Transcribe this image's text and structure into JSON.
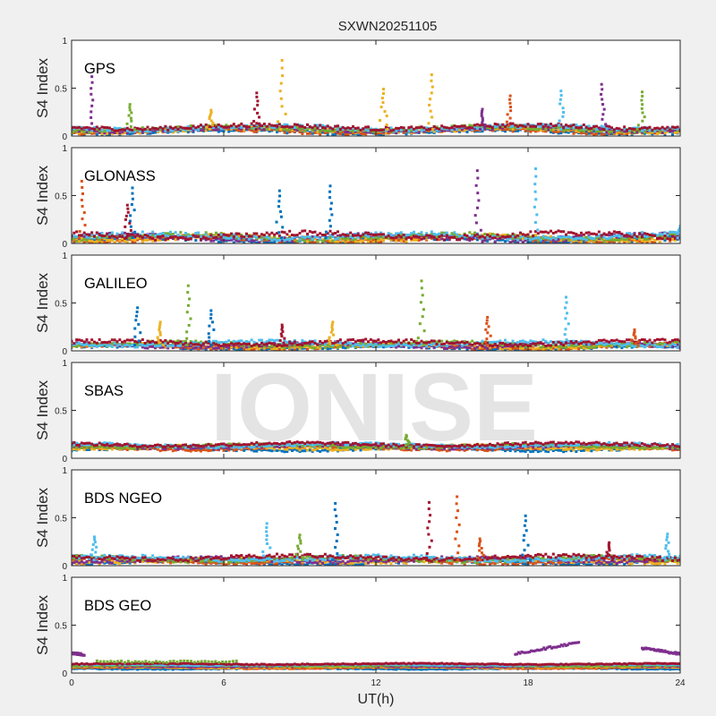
{
  "chart_data": {
    "type": "scatter",
    "title": "SXWN20251105",
    "xlabel": "UT(h)",
    "ylabel": "S4 Index",
    "xlim": [
      0,
      24
    ],
    "ylim": [
      0,
      1
    ],
    "xticks": [
      "0",
      "6",
      "12",
      "18",
      "24"
    ],
    "xtick_values": [
      0,
      6,
      12,
      18,
      24
    ],
    "yticks": [
      "0",
      "0.5",
      "1"
    ],
    "ytick_values": [
      0,
      0.5,
      1
    ],
    "watermark": "IONISE",
    "series_colors": [
      "#0072BD",
      "#D95319",
      "#EDB120",
      "#7E2F8E",
      "#77AC30",
      "#4DBEEE",
      "#A2142F"
    ],
    "panels": [
      {
        "label": "GPS",
        "baseline": 0.07,
        "noise": 0.04,
        "peaks": [
          {
            "x": 0.8,
            "y": 0.62,
            "color": 3
          },
          {
            "x": 2.3,
            "y": 0.33,
            "color": 4
          },
          {
            "x": 5.5,
            "y": 0.27,
            "color": 2
          },
          {
            "x": 7.3,
            "y": 0.45,
            "color": 6
          },
          {
            "x": 8.3,
            "y": 0.79,
            "color": 2
          },
          {
            "x": 12.3,
            "y": 0.49,
            "color": 2
          },
          {
            "x": 14.2,
            "y": 0.64,
            "color": 2
          },
          {
            "x": 16.2,
            "y": 0.28,
            "color": 3
          },
          {
            "x": 17.3,
            "y": 0.42,
            "color": 1
          },
          {
            "x": 19.3,
            "y": 0.47,
            "color": 5
          },
          {
            "x": 20.9,
            "y": 0.54,
            "color": 3
          },
          {
            "x": 22.5,
            "y": 0.46,
            "color": 4
          }
        ]
      },
      {
        "label": "GLONASS",
        "baseline": 0.06,
        "noise": 0.05,
        "peaks": [
          {
            "x": 0.4,
            "y": 0.65,
            "color": 1
          },
          {
            "x": 2.4,
            "y": 0.58,
            "color": 0
          },
          {
            "x": 2.2,
            "y": 0.4,
            "color": 6
          },
          {
            "x": 8.2,
            "y": 0.55,
            "color": 0
          },
          {
            "x": 10.2,
            "y": 0.6,
            "color": 0
          },
          {
            "x": 16.0,
            "y": 0.76,
            "color": 3
          },
          {
            "x": 18.3,
            "y": 0.78,
            "color": 5
          },
          {
            "x": 24.0,
            "y": 0.18,
            "color": 5
          }
        ]
      },
      {
        "label": "GALILEO",
        "baseline": 0.06,
        "noise": 0.04,
        "peaks": [
          {
            "x": 2.6,
            "y": 0.45,
            "color": 0
          },
          {
            "x": 3.5,
            "y": 0.3,
            "color": 2
          },
          {
            "x": 4.6,
            "y": 0.68,
            "color": 4
          },
          {
            "x": 5.5,
            "y": 0.42,
            "color": 0
          },
          {
            "x": 8.3,
            "y": 0.27,
            "color": 6
          },
          {
            "x": 10.3,
            "y": 0.3,
            "color": 2
          },
          {
            "x": 13.8,
            "y": 0.73,
            "color": 4
          },
          {
            "x": 16.4,
            "y": 0.35,
            "color": 1
          },
          {
            "x": 19.5,
            "y": 0.56,
            "color": 5
          },
          {
            "x": 22.2,
            "y": 0.22,
            "color": 1
          }
        ]
      },
      {
        "label": "SBAS",
        "baseline": 0.12,
        "noise": 0.03,
        "peaks": [
          {
            "x": 13.2,
            "y": 0.24,
            "color": 4
          }
        ]
      },
      {
        "label": "BDS NGEO",
        "baseline": 0.06,
        "noise": 0.04,
        "peaks": [
          {
            "x": 0.9,
            "y": 0.3,
            "color": 5
          },
          {
            "x": 7.7,
            "y": 0.44,
            "color": 5
          },
          {
            "x": 9.0,
            "y": 0.32,
            "color": 4
          },
          {
            "x": 10.4,
            "y": 0.65,
            "color": 0
          },
          {
            "x": 14.1,
            "y": 0.66,
            "color": 6
          },
          {
            "x": 15.2,
            "y": 0.72,
            "color": 1
          },
          {
            "x": 16.1,
            "y": 0.28,
            "color": 1
          },
          {
            "x": 17.9,
            "y": 0.52,
            "color": 0
          },
          {
            "x": 21.2,
            "y": 0.24,
            "color": 6
          },
          {
            "x": 23.5,
            "y": 0.33,
            "color": 5
          }
        ]
      },
      {
        "label": "BDS GEO",
        "baseline": 0.07,
        "noise": 0.01,
        "peaks": [],
        "segments": [
          {
            "color": 3,
            "x": [
              0.0,
              0.5
            ],
            "y": [
              0.21,
              0.19
            ]
          },
          {
            "color": 4,
            "x": [
              1.0,
              6.5
            ],
            "y": [
              0.12,
              0.12
            ]
          },
          {
            "color": 3,
            "x": [
              17.5,
              20.0
            ],
            "y": [
              0.2,
              0.32
            ]
          },
          {
            "color": 3,
            "x": [
              22.5,
              24.0
            ],
            "y": [
              0.26,
              0.2
            ]
          }
        ]
      }
    ]
  }
}
